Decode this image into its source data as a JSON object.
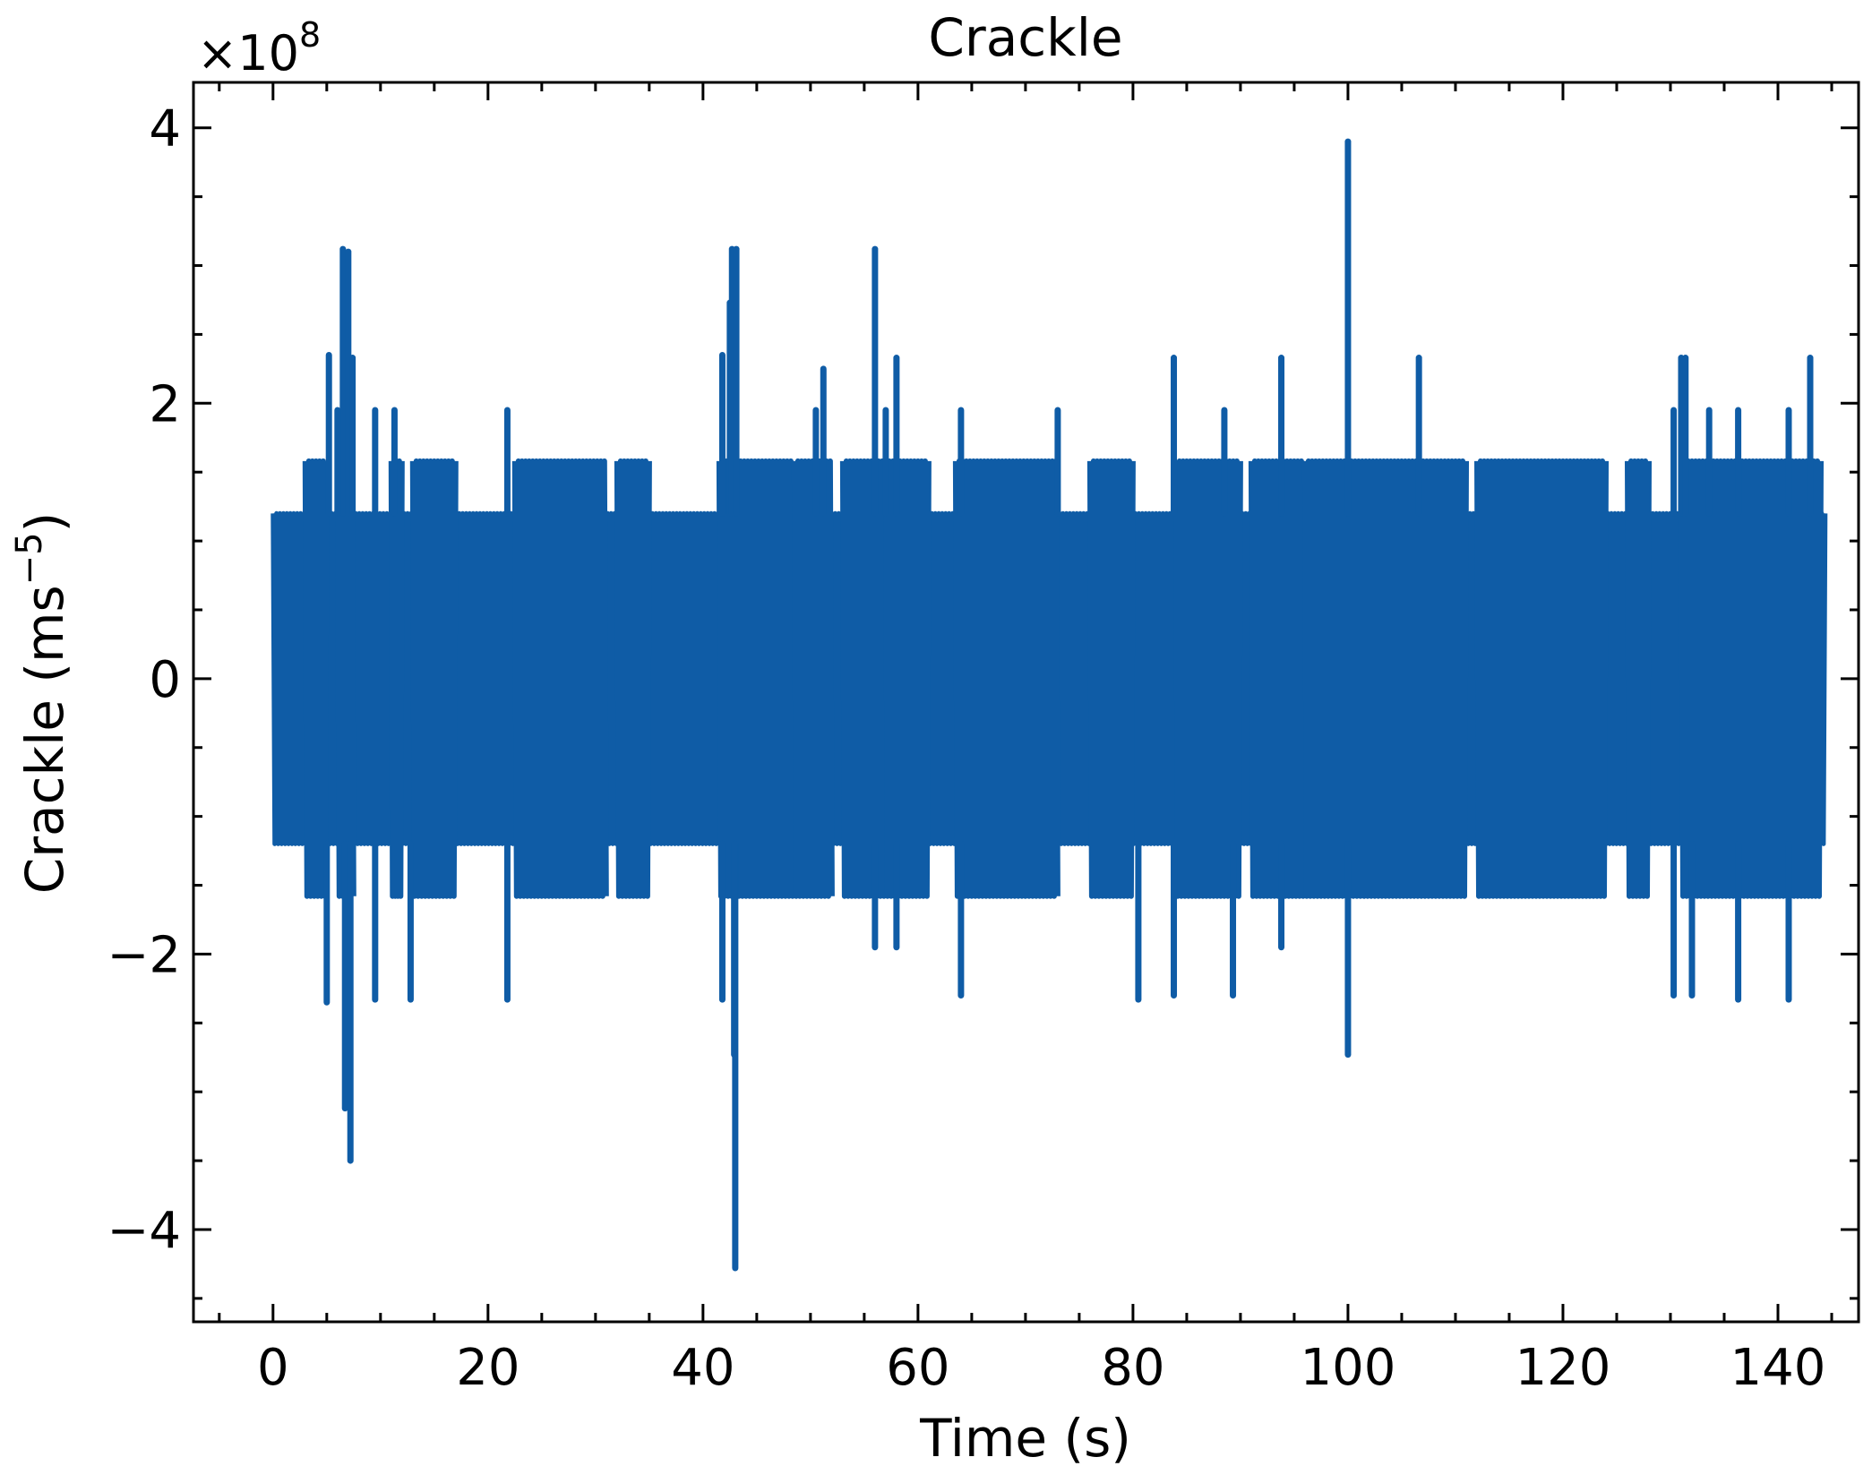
{
  "chart_data": {
    "type": "line",
    "title": "Crackle",
    "xlabel": "Time (s)",
    "ylabel_main": "Crackle (ms",
    "ylabel_sup": "−5",
    "ylabel_close": ")",
    "offset_base": "×10",
    "offset_exp": "8",
    "xlim": [
      -7.4,
      147.5
    ],
    "ylim": [
      -4.67,
      4.33
    ],
    "xticks": [
      0,
      20,
      40,
      60,
      80,
      100,
      120,
      140
    ],
    "xtick_labels": [
      "0",
      "20",
      "40",
      "60",
      "80",
      "100",
      "120",
      "140"
    ],
    "yticks": [
      -4,
      -2,
      0,
      2,
      4
    ],
    "ytick_labels": [
      "−4",
      "−2",
      "0",
      "2",
      "4"
    ],
    "grid": false,
    "line_color": "#0f5ca6",
    "series": [
      {
        "x_range": [
          0,
          144.4
        ],
        "band": {
          "lower": -1.2,
          "upper": 1.2
        },
        "outer_band_segments": [
          [
            3,
            5
          ],
          [
            6,
            7.5
          ],
          [
            11,
            12
          ],
          [
            13,
            17
          ],
          [
            22.5,
            31
          ],
          [
            32,
            35
          ],
          [
            41.5,
            48.5
          ],
          [
            48.5,
            52
          ],
          [
            53,
            57
          ],
          [
            57,
            61
          ],
          [
            63.5,
            73
          ],
          [
            76,
            80
          ],
          [
            84,
            90
          ],
          [
            91,
            96
          ],
          [
            96,
            111
          ],
          [
            112,
            124
          ],
          [
            126,
            128
          ],
          [
            131,
            144
          ]
        ],
        "outer_band": {
          "lower": -1.58,
          "upper": 1.58
        },
        "spikes": [
          {
            "x": 6.5,
            "y": 3.12
          },
          {
            "x": 7.0,
            "y": 3.1
          },
          {
            "x": 7.2,
            "y": -3.5
          },
          {
            "x": 6.7,
            "y": -3.12
          },
          {
            "x": 5.2,
            "y": 2.35
          },
          {
            "x": 5.0,
            "y": -2.35
          },
          {
            "x": 7.4,
            "y": 2.33
          },
          {
            "x": 6.0,
            "y": 1.95
          },
          {
            "x": 9.5,
            "y": 1.95
          },
          {
            "x": 11.3,
            "y": 1.95
          },
          {
            "x": 9.5,
            "y": -2.33
          },
          {
            "x": 12.8,
            "y": -2.33
          },
          {
            "x": 21.8,
            "y": 1.95
          },
          {
            "x": 21.8,
            "y": -2.33
          },
          {
            "x": 41.8,
            "y": 2.35
          },
          {
            "x": 41.8,
            "y": -2.33
          },
          {
            "x": 42.5,
            "y": 2.73
          },
          {
            "x": 42.7,
            "y": 3.12
          },
          {
            "x": 43.1,
            "y": 3.12
          },
          {
            "x": 43.0,
            "y": -4.28
          },
          {
            "x": 42.9,
            "y": -2.73
          },
          {
            "x": 50.5,
            "y": 1.95
          },
          {
            "x": 51.2,
            "y": 2.25
          },
          {
            "x": 56.0,
            "y": 3.12
          },
          {
            "x": 56.0,
            "y": -1.95
          },
          {
            "x": 57.0,
            "y": 1.95
          },
          {
            "x": 58.0,
            "y": 2.33
          },
          {
            "x": 58.0,
            "y": -1.95
          },
          {
            "x": 64.0,
            "y": 1.95
          },
          {
            "x": 64.0,
            "y": -2.3
          },
          {
            "x": 73.0,
            "y": 1.95
          },
          {
            "x": 80.5,
            "y": -2.33
          },
          {
            "x": 83.8,
            "y": 2.33
          },
          {
            "x": 83.8,
            "y": -2.3
          },
          {
            "x": 88.5,
            "y": 1.95
          },
          {
            "x": 89.3,
            "y": -2.3
          },
          {
            "x": 93.8,
            "y": 2.33
          },
          {
            "x": 93.8,
            "y": -1.95
          },
          {
            "x": 100.0,
            "y": 3.9
          },
          {
            "x": 100.0,
            "y": -2.73
          },
          {
            "x": 106.6,
            "y": 2.33
          },
          {
            "x": 130.3,
            "y": 1.95
          },
          {
            "x": 130.3,
            "y": -2.3
          },
          {
            "x": 131.0,
            "y": 2.33
          },
          {
            "x": 131.4,
            "y": 2.33
          },
          {
            "x": 132.0,
            "y": -2.3
          },
          {
            "x": 133.6,
            "y": 1.95
          },
          {
            "x": 136.3,
            "y": 1.95
          },
          {
            "x": 136.3,
            "y": -2.33
          },
          {
            "x": 141.0,
            "y": 1.95
          },
          {
            "x": 141.0,
            "y": -2.33
          },
          {
            "x": 143.0,
            "y": 2.33
          }
        ]
      }
    ]
  }
}
